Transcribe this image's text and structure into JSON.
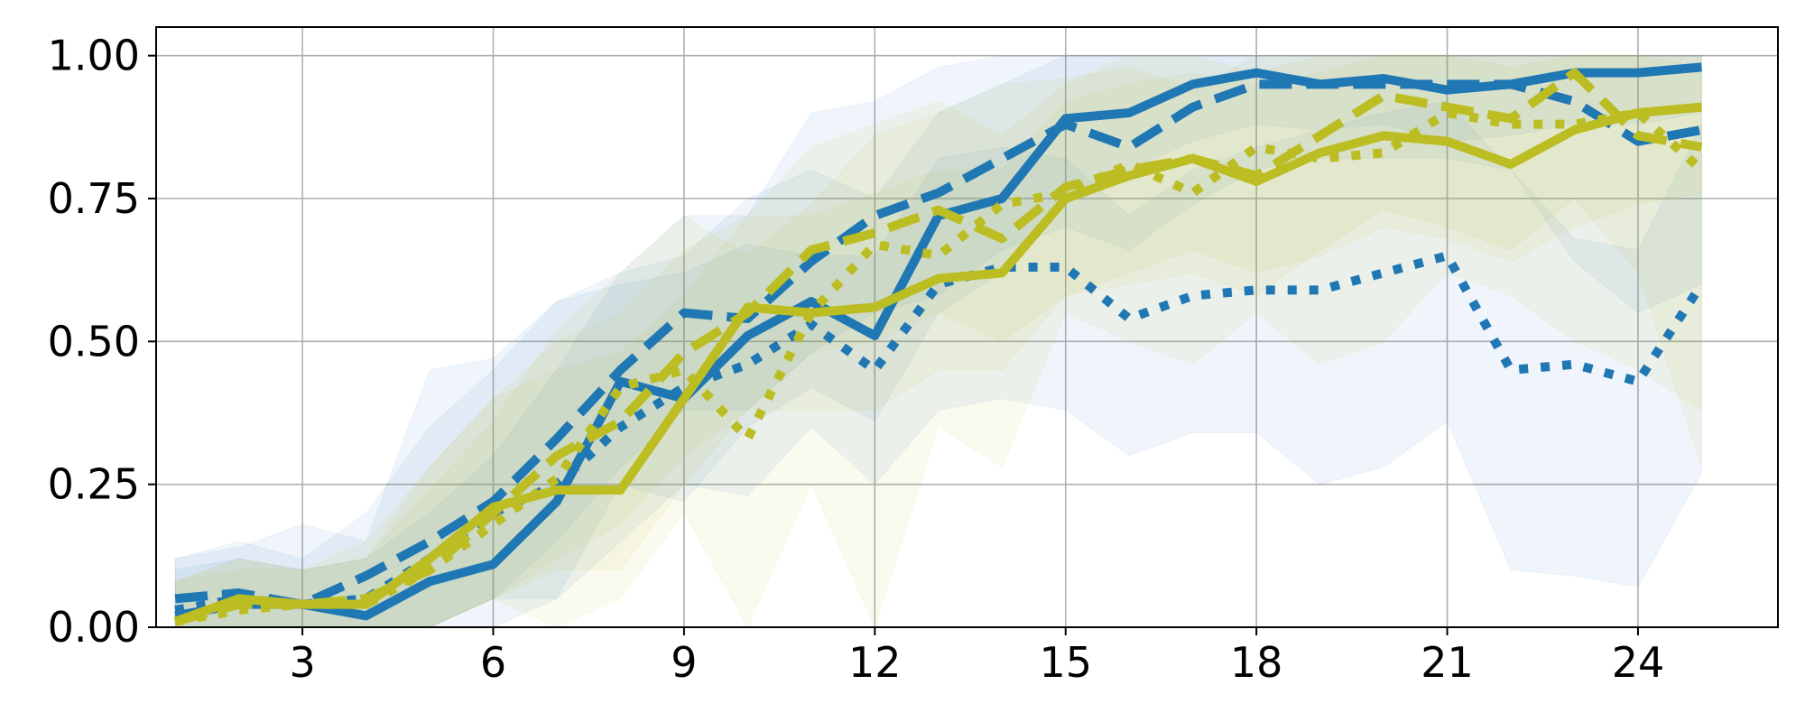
{
  "chart_data": {
    "type": "line",
    "title": "",
    "xlabel": "",
    "ylabel": "",
    "xlim": [
      0.7,
      26.2
    ],
    "ylim": [
      0.0,
      1.05
    ],
    "grid": true,
    "legend": "none",
    "x_ticks": [
      3,
      6,
      9,
      12,
      15,
      18,
      21,
      24
    ],
    "x_tick_labels": [
      "3",
      "6",
      "9",
      "12",
      "15",
      "18",
      "21",
      "24"
    ],
    "y_ticks": [
      0.0,
      0.25,
      0.5,
      0.75,
      1.0
    ],
    "y_tick_labels": [
      "0.00",
      "0.25",
      "0.50",
      "0.75",
      "1.00"
    ],
    "colors": {
      "blue": "#1f77b4",
      "olive": "#bcbd22",
      "grid": "#b0b0b0"
    },
    "x": [
      1,
      2,
      3,
      4,
      5,
      6,
      7,
      8,
      9,
      10,
      11,
      12,
      13,
      14,
      15,
      16,
      17,
      18,
      19,
      20,
      21,
      22,
      23,
      24,
      25
    ],
    "series": [
      {
        "color": "#1f77b4",
        "linestyle": "solid",
        "values": [
          0.02,
          0.04,
          0.04,
          0.02,
          0.08,
          0.11,
          0.22,
          0.43,
          0.4,
          0.51,
          0.57,
          0.51,
          0.72,
          0.75,
          0.89,
          0.9,
          0.95,
          0.97,
          0.95,
          0.96,
          0.94,
          0.95,
          0.97,
          0.97,
          0.98
        ],
        "lower": [
          0.0,
          0.0,
          0.0,
          0.0,
          0.0,
          0.0,
          0.05,
          0.25,
          0.22,
          0.35,
          0.42,
          0.36,
          0.55,
          0.62,
          0.75,
          0.8,
          0.85,
          0.88,
          0.87,
          0.88,
          0.85,
          0.86,
          0.88,
          0.88,
          0.9
        ],
        "upper": [
          0.1,
          0.12,
          0.1,
          0.12,
          0.2,
          0.3,
          0.45,
          0.62,
          0.65,
          0.75,
          0.8,
          0.75,
          0.9,
          0.95,
          1.0,
          1.0,
          1.0,
          1.0,
          1.0,
          1.0,
          1.0,
          1.0,
          1.0,
          1.0,
          1.0
        ]
      },
      {
        "color": "#1f77b4",
        "linestyle": "dashed",
        "values": [
          0.05,
          0.06,
          0.04,
          0.09,
          0.15,
          0.22,
          0.33,
          0.45,
          0.55,
          0.54,
          0.64,
          0.72,
          0.76,
          0.82,
          0.88,
          0.84,
          0.91,
          0.95,
          0.95,
          0.95,
          0.95,
          0.95,
          0.92,
          0.85,
          0.87
        ],
        "lower": [
          0.0,
          0.0,
          0.0,
          0.0,
          0.0,
          0.05,
          0.15,
          0.28,
          0.38,
          0.38,
          0.48,
          0.55,
          0.58,
          0.66,
          0.7,
          0.66,
          0.74,
          0.8,
          0.82,
          0.82,
          0.82,
          0.8,
          0.64,
          0.55,
          0.6
        ],
        "upper": [
          0.12,
          0.15,
          0.12,
          0.2,
          0.35,
          0.45,
          0.57,
          0.62,
          0.72,
          0.72,
          0.9,
          0.92,
          0.98,
          1.0,
          1.0,
          1.0,
          1.0,
          1.0,
          1.0,
          1.0,
          1.0,
          1.0,
          1.0,
          1.0,
          1.0
        ]
      },
      {
        "color": "#1f77b4",
        "linestyle": "dotted",
        "values": [
          0.03,
          0.05,
          0.04,
          0.05,
          0.12,
          0.2,
          0.25,
          0.35,
          0.42,
          0.46,
          0.53,
          0.45,
          0.6,
          0.63,
          0.63,
          0.54,
          0.58,
          0.59,
          0.59,
          0.62,
          0.65,
          0.45,
          0.46,
          0.43,
          0.6
        ],
        "lower": [
          0.0,
          0.0,
          0.0,
          0.0,
          0.0,
          0.05,
          0.05,
          0.15,
          0.25,
          0.23,
          0.35,
          0.25,
          0.38,
          0.4,
          0.38,
          0.3,
          0.34,
          0.34,
          0.25,
          0.28,
          0.36,
          0.1,
          0.09,
          0.07,
          0.27
        ],
        "upper": [
          0.12,
          0.14,
          0.18,
          0.15,
          0.45,
          0.47,
          0.57,
          0.6,
          0.62,
          0.67,
          0.65,
          0.65,
          0.82,
          0.84,
          0.82,
          0.72,
          0.8,
          0.84,
          0.87,
          0.9,
          0.92,
          0.8,
          0.68,
          0.66,
          0.88
        ]
      },
      {
        "color": "#bcbd22",
        "linestyle": "solid",
        "values": [
          0.01,
          0.05,
          0.04,
          0.04,
          0.12,
          0.21,
          0.24,
          0.24,
          0.4,
          0.56,
          0.55,
          0.56,
          0.61,
          0.62,
          0.75,
          0.79,
          0.82,
          0.78,
          0.83,
          0.86,
          0.85,
          0.81,
          0.87,
          0.9,
          0.91
        ],
        "lower": [
          0.0,
          0.0,
          0.0,
          0.0,
          0.0,
          0.05,
          0.1,
          0.1,
          0.25,
          0.38,
          0.38,
          0.38,
          0.45,
          0.45,
          0.58,
          0.62,
          0.66,
          0.62,
          0.65,
          0.7,
          0.68,
          0.64,
          0.7,
          0.74,
          0.76
        ],
        "upper": [
          0.08,
          0.12,
          0.1,
          0.12,
          0.28,
          0.4,
          0.45,
          0.48,
          0.58,
          0.72,
          0.72,
          0.76,
          0.8,
          0.8,
          0.92,
          0.95,
          0.97,
          0.95,
          0.97,
          1.0,
          1.0,
          0.98,
          1.0,
          1.0,
          1.0
        ]
      },
      {
        "color": "#bcbd22",
        "linestyle": "dashed",
        "values": [
          0.01,
          0.04,
          0.04,
          0.05,
          0.1,
          0.2,
          0.3,
          0.36,
          0.48,
          0.55,
          0.66,
          0.69,
          0.73,
          0.68,
          0.77,
          0.8,
          0.82,
          0.79,
          0.86,
          0.93,
          0.91,
          0.89,
          0.97,
          0.86,
          0.84
        ],
        "lower": [
          0.0,
          0.0,
          0.0,
          0.0,
          0.0,
          0.05,
          0.12,
          0.18,
          0.3,
          0.38,
          0.48,
          0.5,
          0.55,
          0.5,
          0.58,
          0.6,
          0.62,
          0.58,
          0.66,
          0.73,
          0.7,
          0.66,
          0.75,
          0.62,
          0.28
        ],
        "upper": [
          0.08,
          0.12,
          0.1,
          0.15,
          0.28,
          0.4,
          0.5,
          0.55,
          0.66,
          0.72,
          0.84,
          0.88,
          0.92,
          0.86,
          0.95,
          1.0,
          1.0,
          0.97,
          1.0,
          1.0,
          1.0,
          1.0,
          1.0,
          1.0,
          1.0
        ]
      },
      {
        "color": "#bcbd22",
        "linestyle": "dotted",
        "values": [
          0.01,
          0.03,
          0.04,
          0.04,
          0.1,
          0.18,
          0.26,
          0.42,
          0.45,
          0.33,
          0.55,
          0.67,
          0.65,
          0.74,
          0.76,
          0.81,
          0.76,
          0.84,
          0.82,
          0.83,
          0.9,
          0.88,
          0.88,
          0.9,
          0.8
        ],
        "lower": [
          0.0,
          0.0,
          0.0,
          0.0,
          0.0,
          0.05,
          0.0,
          0.05,
          0.2,
          0.0,
          0.25,
          0.0,
          0.35,
          0.28,
          0.55,
          0.5,
          0.46,
          0.55,
          0.46,
          0.5,
          0.62,
          0.58,
          0.5,
          0.45,
          0.38
        ],
        "upper": [
          0.08,
          0.1,
          0.1,
          0.12,
          0.24,
          0.36,
          0.52,
          0.62,
          0.72,
          0.65,
          0.74,
          0.86,
          0.9,
          0.95,
          0.96,
          0.98,
          0.94,
          1.0,
          1.0,
          1.0,
          1.0,
          1.0,
          1.0,
          1.0,
          0.98
        ]
      }
    ]
  }
}
